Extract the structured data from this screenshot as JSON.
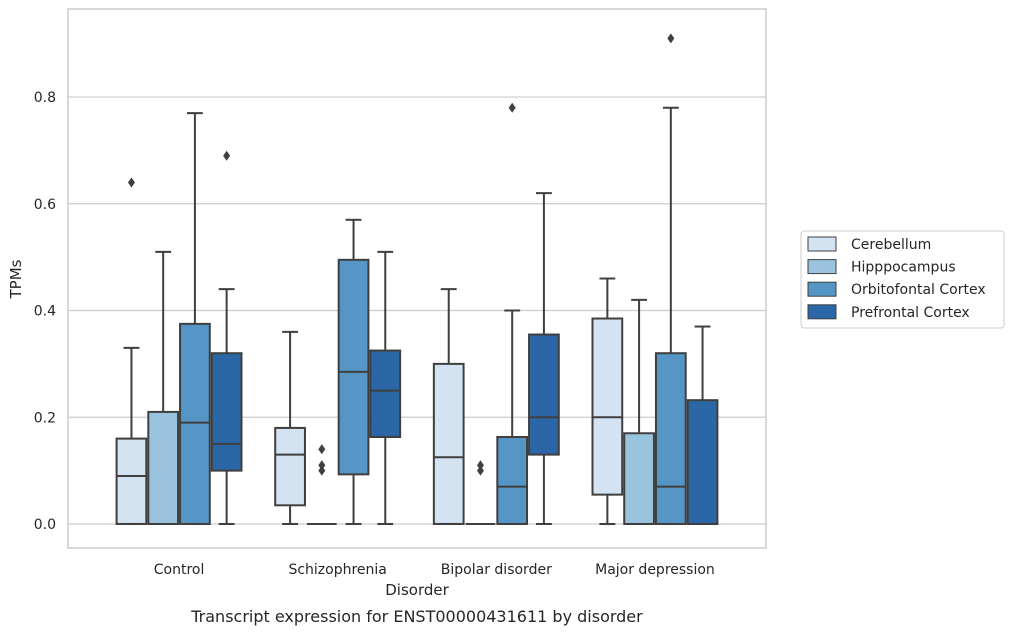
{
  "chart_data": {
    "type": "box",
    "title": "",
    "caption": "Transcript expression for ENST00000431611 by disorder",
    "xlabel": "Disorder",
    "ylabel": "TPMs",
    "ylim": [
      -0.045,
      0.965
    ],
    "yticks": [
      0.0,
      0.2,
      0.4,
      0.6,
      0.8
    ],
    "ytick_labels": [
      "0.0",
      "0.2",
      "0.4",
      "0.6",
      "0.8"
    ],
    "grid": true,
    "legend_position": "right",
    "categories": [
      "Control",
      "Schizophrenia",
      "Bipolar disorder",
      "Major depression"
    ],
    "series": [
      {
        "name": "Cerebellum",
        "color": "#d3e3f2",
        "boxes": [
          {
            "min": 0.0,
            "q1": 0.0,
            "median": 0.09,
            "q3": 0.16,
            "max": 0.33,
            "outliers": [
              0.64
            ]
          },
          {
            "min": 0.0,
            "q1": 0.035,
            "median": 0.13,
            "q3": 0.18,
            "max": 0.36,
            "outliers": []
          },
          {
            "min": 0.0,
            "q1": 0.0,
            "median": 0.125,
            "q3": 0.3,
            "max": 0.44,
            "outliers": []
          },
          {
            "min": 0.0,
            "q1": 0.055,
            "median": 0.2,
            "q3": 0.385,
            "max": 0.46,
            "outliers": []
          }
        ]
      },
      {
        "name": "Hipppocampus",
        "color": "#9ac3de",
        "boxes": [
          {
            "min": 0.0,
            "q1": 0.0,
            "median": 0.0,
            "q3": 0.21,
            "max": 0.51,
            "outliers": []
          },
          {
            "min": 0.0,
            "q1": 0.0,
            "median": 0.0,
            "q3": 0.0,
            "max": 0.0,
            "outliers": [
              0.1,
              0.11,
              0.14
            ]
          },
          {
            "min": 0.0,
            "q1": 0.0,
            "median": 0.0,
            "q3": 0.0,
            "max": 0.0,
            "outliers": [
              0.1,
              0.11
            ]
          },
          {
            "min": 0.0,
            "q1": 0.0,
            "median": 0.0,
            "q3": 0.17,
            "max": 0.42,
            "outliers": []
          }
        ]
      },
      {
        "name": "Orbitofontal Cortex",
        "color": "#5596c6",
        "boxes": [
          {
            "min": 0.0,
            "q1": 0.0,
            "median": 0.19,
            "q3": 0.375,
            "max": 0.77,
            "outliers": []
          },
          {
            "min": 0.0,
            "q1": 0.093,
            "median": 0.285,
            "q3": 0.495,
            "max": 0.57,
            "outliers": []
          },
          {
            "min": 0.0,
            "q1": 0.0,
            "median": 0.07,
            "q3": 0.163,
            "max": 0.4,
            "outliers": [
              0.78
            ]
          },
          {
            "min": 0.0,
            "q1": 0.0,
            "median": 0.07,
            "q3": 0.32,
            "max": 0.78,
            "outliers": [
              0.91
            ]
          }
        ]
      },
      {
        "name": "Prefrontal Cortex",
        "color": "#2b67a7",
        "boxes": [
          {
            "min": 0.0,
            "q1": 0.1,
            "median": 0.15,
            "q3": 0.32,
            "max": 0.44,
            "outliers": [
              0.69
            ]
          },
          {
            "min": 0.0,
            "q1": 0.163,
            "median": 0.25,
            "q3": 0.325,
            "max": 0.51,
            "outliers": []
          },
          {
            "min": 0.0,
            "q1": 0.13,
            "median": 0.2,
            "q3": 0.355,
            "max": 0.62,
            "outliers": []
          },
          {
            "min": 0.0,
            "q1": 0.0,
            "median": 0.0,
            "q3": 0.232,
            "max": 0.37,
            "outliers": []
          }
        ]
      }
    ]
  }
}
